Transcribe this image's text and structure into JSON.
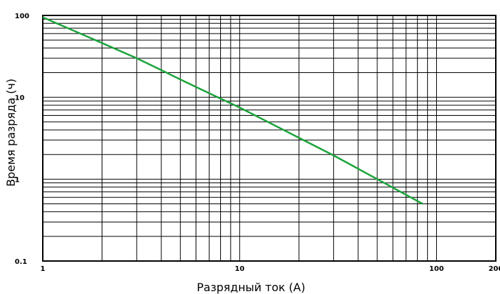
{
  "chart_data": {
    "type": "line",
    "xlabel": "Разрядный ток (А)",
    "ylabel": "Время разряда (ч)",
    "x_scale": "log",
    "y_scale": "log",
    "xlim": [
      1,
      200
    ],
    "ylim": [
      0.1,
      100
    ],
    "x_ticks": [
      {
        "value": 1,
        "label": "1"
      },
      {
        "value": 10,
        "label": "10"
      },
      {
        "value": 100,
        "label": "100"
      },
      {
        "value": 200,
        "label": "200"
      }
    ],
    "y_ticks": [
      {
        "value": 100,
        "label": "100"
      },
      {
        "value": 10,
        "label": "10"
      },
      {
        "value": 1,
        "label": "1"
      },
      {
        "value": 0.1,
        "label": "0.1"
      }
    ],
    "grid": true,
    "line_color": "#1aa33a",
    "series": [
      {
        "x": [
          1,
          2,
          3,
          4,
          5,
          7,
          10,
          20,
          30,
          50,
          85
        ],
        "y": [
          95,
          46,
          30,
          21.5,
          16.5,
          11.2,
          7.5,
          3.2,
          1.95,
          1.0,
          0.5
        ]
      }
    ]
  }
}
